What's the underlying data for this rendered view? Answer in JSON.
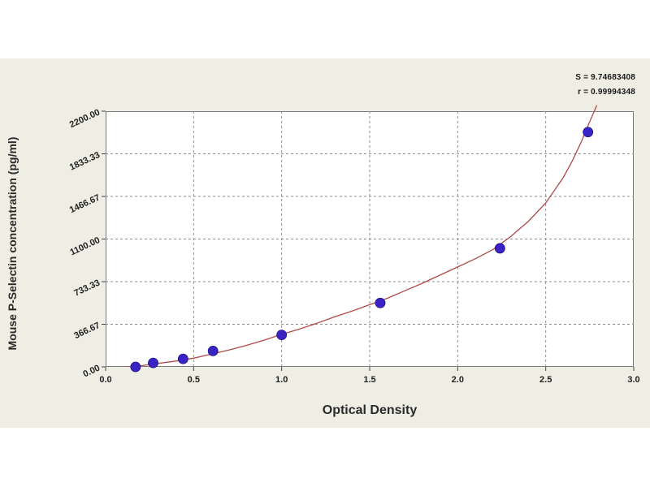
{
  "stats": {
    "s_line": "S = 9.74683408",
    "r_line": "r = 0.99994348"
  },
  "colors": {
    "curve": "#b04a4a",
    "points": "#3a23c4",
    "grid": "#8c8c8c",
    "panel": "#efeee5"
  },
  "chart_data": {
    "type": "scatter",
    "title": "",
    "xlabel": "Optical Density",
    "ylabel": "Mouse P-Selectin concentration (pg/ml)",
    "xlim": [
      0.0,
      3.0
    ],
    "ylim": [
      0.0,
      2200.0
    ],
    "x_ticks": [
      "0.0",
      "0.5",
      "1.0",
      "1.5",
      "2.0",
      "2.5",
      "3.0"
    ],
    "y_ticks": [
      "0.00",
      "366.67",
      "733.33",
      "1100.00",
      "1466.67",
      "1833.33",
      "2200.00"
    ],
    "grid": true,
    "series": [
      {
        "points": [
          {
            "x": 0.17,
            "y": 0
          },
          {
            "x": 0.27,
            "y": 34
          },
          {
            "x": 0.44,
            "y": 69
          },
          {
            "x": 0.61,
            "y": 137
          },
          {
            "x": 1.0,
            "y": 275
          },
          {
            "x": 1.56,
            "y": 550
          },
          {
            "x": 2.24,
            "y": 1020
          },
          {
            "x": 2.74,
            "y": 2020
          }
        ]
      }
    ],
    "fit_curve": {
      "x": [
        0.12,
        0.2,
        0.3,
        0.4,
        0.5,
        0.6,
        0.7,
        0.8,
        0.9,
        1.0,
        1.1,
        1.2,
        1.3,
        1.4,
        1.5,
        1.6,
        1.7,
        1.8,
        1.9,
        2.0,
        2.1,
        2.2,
        2.3,
        2.4,
        2.5,
        2.6,
        2.65,
        2.7,
        2.75,
        2.79
      ],
      "y": [
        0,
        10,
        30,
        50,
        75,
        110,
        145,
        185,
        230,
        280,
        325,
        375,
        430,
        480,
        535,
        590,
        655,
        720,
        790,
        860,
        930,
        1010,
        1120,
        1250,
        1410,
        1630,
        1770,
        1930,
        2110,
        2250
      ]
    }
  }
}
